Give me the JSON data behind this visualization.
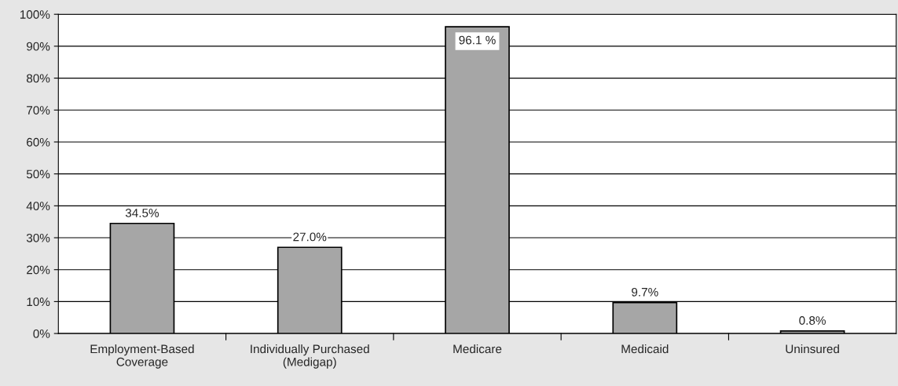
{
  "chart_data": {
    "type": "bar",
    "categories": [
      "Employment-Based\nCoverage",
      "Individually Purchased\n(Medigap)",
      "Medicare",
      "Medicaid",
      "Uninsured"
    ],
    "values": [
      34.5,
      27.0,
      96.1,
      9.7,
      0.8
    ],
    "value_labels": [
      "34.5%",
      "27.0%",
      "96.1 %",
      "9.7%",
      "0.8%"
    ],
    "color": "#a6a6a6",
    "ylim": [
      0,
      100
    ],
    "yticks": [
      {
        "value": 0,
        "label": "0%"
      },
      {
        "value": 10,
        "label": "10%"
      },
      {
        "value": 20,
        "label": "20%"
      },
      {
        "value": 30,
        "label": "30%"
      },
      {
        "value": 40,
        "label": "40%"
      },
      {
        "value": 50,
        "label": "50%"
      },
      {
        "value": 60,
        "label": "60%"
      },
      {
        "value": 70,
        "label": "70%"
      },
      {
        "value": 80,
        "label": "80%"
      },
      {
        "value": 90,
        "label": "90%"
      },
      {
        "value": 100,
        "label": "100%"
      }
    ],
    "grid": "y",
    "legend": false
  }
}
